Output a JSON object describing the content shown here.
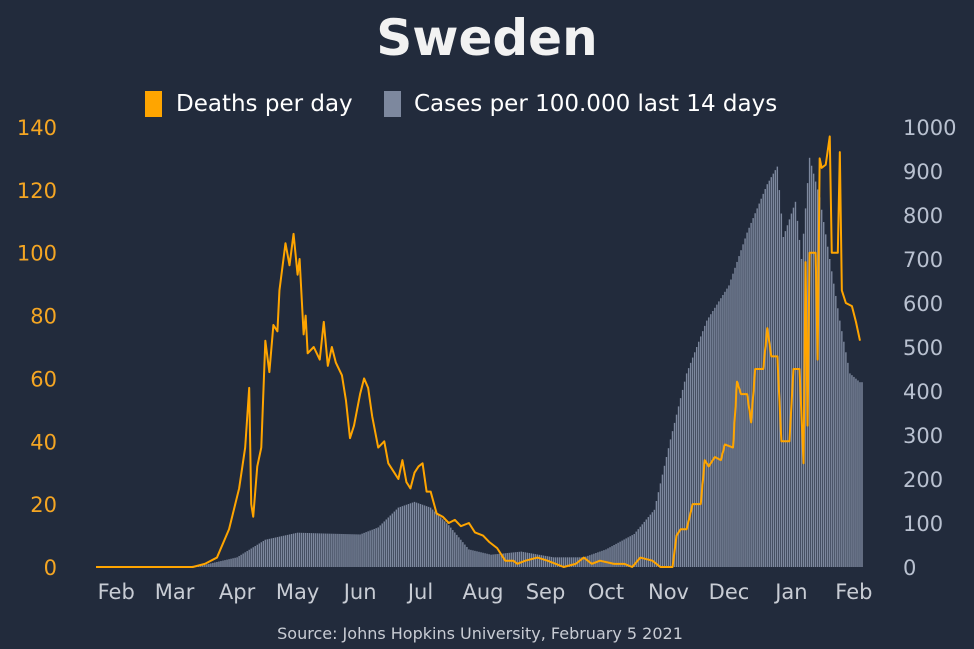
{
  "colors": {
    "background": "#222b3c",
    "deaths": "#ffa500",
    "cases": "#7d889e",
    "left_axis": "#f5a623",
    "right_axis": "#b9c1d0",
    "text": "#ffffff"
  },
  "chart_data": {
    "type": "bar+line",
    "title": "Sweden",
    "source": "Source: Johns Hopkins University, February 5 2021",
    "legend": {
      "placement": "top-center",
      "deaths_label": "Deaths per day",
      "cases_label": "Cases per 100.000 last 14 days"
    },
    "x_range": [
      "2020-01-22",
      "2021-02-05"
    ],
    "x_ticks": [
      {
        "date": "2020-02-01",
        "label": "Feb"
      },
      {
        "date": "2020-03-01",
        "label": "Mar"
      },
      {
        "date": "2020-04-01",
        "label": "Apr"
      },
      {
        "date": "2020-05-01",
        "label": "May"
      },
      {
        "date": "2020-06-01",
        "label": "Jun"
      },
      {
        "date": "2020-07-01",
        "label": "Jul"
      },
      {
        "date": "2020-08-01",
        "label": "Aug"
      },
      {
        "date": "2020-09-01",
        "label": "Sep"
      },
      {
        "date": "2020-10-01",
        "label": "Oct"
      },
      {
        "date": "2020-11-01",
        "label": "Nov"
      },
      {
        "date": "2020-12-01",
        "label": "Dec"
      },
      {
        "date": "2021-01-01",
        "label": "Jan"
      },
      {
        "date": "2021-02-01",
        "label": "Feb"
      }
    ],
    "y_left": {
      "label": "",
      "range": [
        0,
        140
      ],
      "ticks": [
        "0",
        "20",
        "40",
        "60",
        "80",
        "100",
        "120",
        "140"
      ]
    },
    "y_right": {
      "label": "",
      "range": [
        0,
        1000
      ],
      "ticks": [
        "0",
        "100",
        "200",
        "300",
        "400",
        "500",
        "600",
        "700",
        "800",
        "900",
        "1000"
      ]
    },
    "series": [
      {
        "name": "Deaths per day",
        "axis": "left",
        "style": "line",
        "points": [
          [
            "2020-01-22",
            0
          ],
          [
            "2020-03-10",
            0
          ],
          [
            "2020-03-16",
            1
          ],
          [
            "2020-03-22",
            3
          ],
          [
            "2020-03-28",
            12
          ],
          [
            "2020-04-02",
            25
          ],
          [
            "2020-04-05",
            38
          ],
          [
            "2020-04-07",
            57
          ],
          [
            "2020-04-08",
            20
          ],
          [
            "2020-04-09",
            16
          ],
          [
            "2020-04-11",
            32
          ],
          [
            "2020-04-13",
            38
          ],
          [
            "2020-04-15",
            72
          ],
          [
            "2020-04-17",
            62
          ],
          [
            "2020-04-19",
            77
          ],
          [
            "2020-04-21",
            75
          ],
          [
            "2020-04-22",
            88
          ],
          [
            "2020-04-25",
            103
          ],
          [
            "2020-04-27",
            96
          ],
          [
            "2020-04-29",
            106
          ],
          [
            "2020-05-01",
            93
          ],
          [
            "2020-05-02",
            98
          ],
          [
            "2020-05-04",
            74
          ],
          [
            "2020-05-05",
            80
          ],
          [
            "2020-05-06",
            68
          ],
          [
            "2020-05-09",
            70
          ],
          [
            "2020-05-12",
            66
          ],
          [
            "2020-05-14",
            78
          ],
          [
            "2020-05-16",
            64
          ],
          [
            "2020-05-18",
            70
          ],
          [
            "2020-05-20",
            65
          ],
          [
            "2020-05-23",
            61
          ],
          [
            "2020-05-25",
            53
          ],
          [
            "2020-05-27",
            41
          ],
          [
            "2020-05-29",
            45
          ],
          [
            "2020-06-01",
            55
          ],
          [
            "2020-06-03",
            60
          ],
          [
            "2020-06-05",
            57
          ],
          [
            "2020-06-07",
            48
          ],
          [
            "2020-06-10",
            38
          ],
          [
            "2020-06-13",
            40
          ],
          [
            "2020-06-15",
            33
          ],
          [
            "2020-06-18",
            30
          ],
          [
            "2020-06-20",
            28
          ],
          [
            "2020-06-22",
            34
          ],
          [
            "2020-06-24",
            27
          ],
          [
            "2020-06-26",
            25
          ],
          [
            "2020-06-28",
            30
          ],
          [
            "2020-06-30",
            32
          ],
          [
            "2020-07-02",
            33
          ],
          [
            "2020-07-04",
            24
          ],
          [
            "2020-07-06",
            24
          ],
          [
            "2020-07-09",
            17
          ],
          [
            "2020-07-12",
            16
          ],
          [
            "2020-07-15",
            14
          ],
          [
            "2020-07-18",
            15
          ],
          [
            "2020-07-21",
            13
          ],
          [
            "2020-07-25",
            14
          ],
          [
            "2020-07-28",
            11
          ],
          [
            "2020-08-01",
            10
          ],
          [
            "2020-08-04",
            8
          ],
          [
            "2020-08-08",
            6
          ],
          [
            "2020-08-12",
            2
          ],
          [
            "2020-08-16",
            2
          ],
          [
            "2020-08-18",
            1
          ],
          [
            "2020-08-22",
            2
          ],
          [
            "2020-08-28",
            3
          ],
          [
            "2020-09-02",
            2
          ],
          [
            "2020-09-06",
            1
          ],
          [
            "2020-09-10",
            0
          ],
          [
            "2020-09-16",
            1
          ],
          [
            "2020-09-20",
            3
          ],
          [
            "2020-09-24",
            1
          ],
          [
            "2020-09-28",
            2
          ],
          [
            "2020-10-05",
            1
          ],
          [
            "2020-10-10",
            1
          ],
          [
            "2020-10-14",
            0
          ],
          [
            "2020-10-18",
            3
          ],
          [
            "2020-10-24",
            2
          ],
          [
            "2020-10-28",
            0
          ],
          [
            "2020-11-03",
            0
          ],
          [
            "2020-11-05",
            10
          ],
          [
            "2020-11-07",
            12
          ],
          [
            "2020-11-10",
            12
          ],
          [
            "2020-11-13",
            20
          ],
          [
            "2020-11-17",
            20
          ],
          [
            "2020-11-19",
            34
          ],
          [
            "2020-11-21",
            32
          ],
          [
            "2020-11-24",
            35
          ],
          [
            "2020-11-27",
            34
          ],
          [
            "2020-11-29",
            39
          ],
          [
            "2020-12-03",
            38
          ],
          [
            "2020-12-05",
            59
          ],
          [
            "2020-12-07",
            55
          ],
          [
            "2020-12-10",
            55
          ],
          [
            "2020-12-12",
            46
          ],
          [
            "2020-12-14",
            63
          ],
          [
            "2020-12-18",
            63
          ],
          [
            "2020-12-20",
            76
          ],
          [
            "2020-12-22",
            67
          ],
          [
            "2020-12-25",
            67
          ],
          [
            "2020-12-27",
            40
          ],
          [
            "2020-12-31",
            40
          ],
          [
            "2021-01-02",
            63
          ],
          [
            "2021-01-05",
            63
          ],
          [
            "2021-01-07",
            33
          ],
          [
            "2021-01-08",
            97
          ],
          [
            "2021-01-09",
            45
          ],
          [
            "2021-01-10",
            100
          ],
          [
            "2021-01-13",
            100
          ],
          [
            "2021-01-14",
            66
          ],
          [
            "2021-01-15",
            130
          ],
          [
            "2021-01-16",
            127
          ],
          [
            "2021-01-18",
            128
          ],
          [
            "2021-01-20",
            137
          ],
          [
            "2021-01-21",
            100
          ],
          [
            "2021-01-24",
            100
          ],
          [
            "2021-01-25",
            132
          ],
          [
            "2021-01-26",
            88
          ],
          [
            "2021-01-28",
            84
          ],
          [
            "2021-01-31",
            83
          ],
          [
            "2021-02-02",
            78
          ],
          [
            "2021-02-04",
            72
          ]
        ]
      },
      {
        "name": "Cases per 100.000 last 14 days",
        "axis": "right",
        "style": "bar",
        "points": [
          [
            "2020-01-22",
            0
          ],
          [
            "2020-03-01",
            0
          ],
          [
            "2020-03-15",
            4
          ],
          [
            "2020-04-01",
            22
          ],
          [
            "2020-04-15",
            62
          ],
          [
            "2020-05-01",
            78
          ],
          [
            "2020-05-15",
            76
          ],
          [
            "2020-06-01",
            74
          ],
          [
            "2020-06-10",
            90
          ],
          [
            "2020-06-20",
            135
          ],
          [
            "2020-06-28",
            148
          ],
          [
            "2020-07-06",
            135
          ],
          [
            "2020-07-15",
            95
          ],
          [
            "2020-07-25",
            40
          ],
          [
            "2020-08-05",
            28
          ],
          [
            "2020-08-20",
            35
          ],
          [
            "2020-09-05",
            22
          ],
          [
            "2020-09-20",
            22
          ],
          [
            "2020-10-01",
            40
          ],
          [
            "2020-10-15",
            75
          ],
          [
            "2020-10-25",
            130
          ],
          [
            "2020-11-02",
            290
          ],
          [
            "2020-11-10",
            440
          ],
          [
            "2020-11-20",
            560
          ],
          [
            "2020-12-01",
            640
          ],
          [
            "2020-12-10",
            760
          ],
          [
            "2020-12-20",
            870
          ],
          [
            "2020-12-25",
            910
          ],
          [
            "2020-12-28",
            750
          ],
          [
            "2021-01-03",
            830
          ],
          [
            "2021-01-06",
            700
          ],
          [
            "2021-01-10",
            930
          ],
          [
            "2021-01-15",
            840
          ],
          [
            "2021-01-20",
            700
          ],
          [
            "2021-01-25",
            560
          ],
          [
            "2021-01-30",
            440
          ],
          [
            "2021-02-04",
            420
          ]
        ]
      }
    ]
  }
}
